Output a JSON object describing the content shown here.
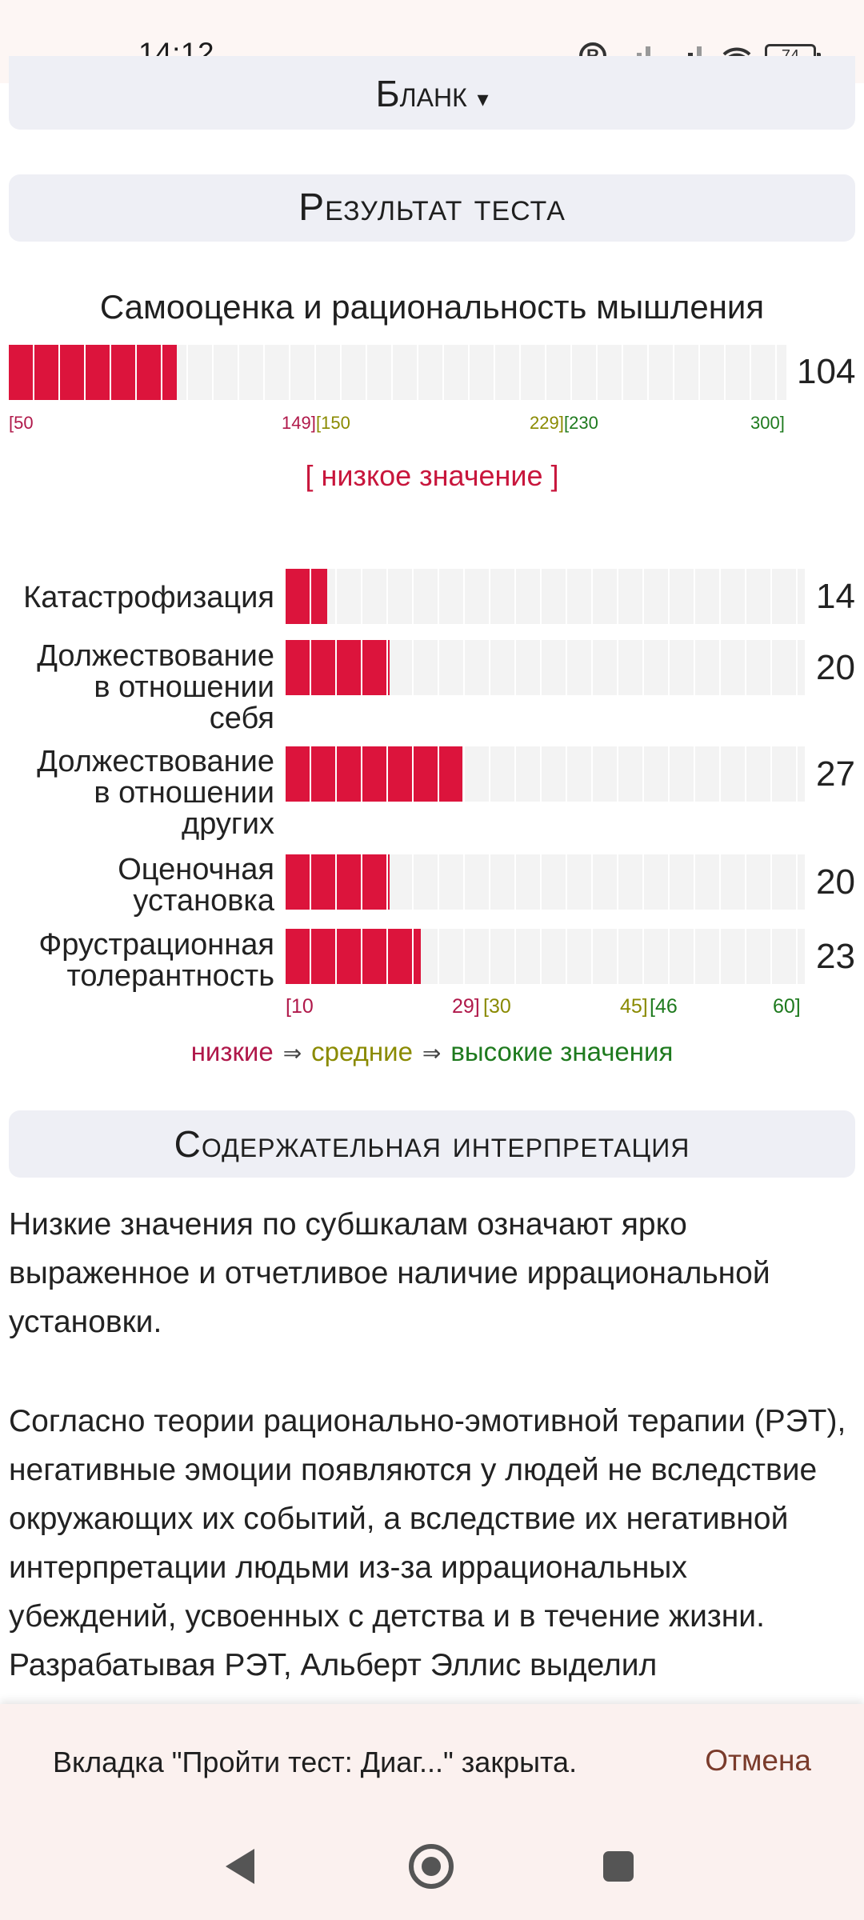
{
  "status_bar": {
    "time": "14:12",
    "battery": "74"
  },
  "form_section": {
    "title": "Бланк",
    "caret": "▾"
  },
  "result_section": {
    "title": "Результат теста"
  },
  "main_scale": {
    "title": "Самооценка и рациональность мышления",
    "value": "104",
    "fill_fraction": 0.216,
    "ticks": {
      "low_start": "[50",
      "low_end": "149]",
      "mid_start": "[150",
      "mid_end": "229]",
      "high_start": "[230",
      "high_end": "300]"
    },
    "verdict": "[ низкое значение ]"
  },
  "subscales": [
    {
      "lines": [
        "Катастрофизация"
      ],
      "value": "14",
      "fill_fraction": 0.08
    },
    {
      "lines": [
        "Должествование",
        "в отношении",
        "себя"
      ],
      "value": "20",
      "fill_fraction": 0.2
    },
    {
      "lines": [
        "Должествование",
        "в отношении",
        "других"
      ],
      "value": "27",
      "fill_fraction": 0.34
    },
    {
      "lines": [
        "Оценочная",
        "установка"
      ],
      "value": "20",
      "fill_fraction": 0.2
    },
    {
      "lines": [
        "Фрустрационная",
        "толерантность"
      ],
      "value": "23",
      "fill_fraction": 0.26
    }
  ],
  "sub_ticks": {
    "low_start": "[10",
    "low_end": "29]",
    "mid_start": "[30",
    "mid_end": "45]",
    "high_start": "[46",
    "high_end": "60]"
  },
  "legend": {
    "low": "низкие",
    "mid": "средние",
    "high": "высокие значения",
    "arrow": "⇒"
  },
  "interpretation": {
    "title": "Содержательная интерпретация",
    "p1": "Низкие значения по субшкалам означают ярко выраженное и отчетливое наличие иррациональной установки.",
    "p2": "Согласно теории рационально-эмотивной терапии (РЭТ), негативные эмоции появляются у людей не вследствие окружающих их событий, а вследствие их негативной интерпретации людьми из-за иррациональных убеждений, усвоенных с детства и в течение жизни. Разрабатывая РЭТ, Альберт Эллис выделил"
  },
  "snackbar": {
    "message": "Вкладка \"Пройти тест: Диаг...\" закрыта.",
    "action": "Отмена"
  },
  "colors": {
    "fill": "#dc143c",
    "track": "#f3f3f3",
    "low": "#b0184a",
    "mid": "#8a8a00",
    "high": "#1e7a1e"
  }
}
